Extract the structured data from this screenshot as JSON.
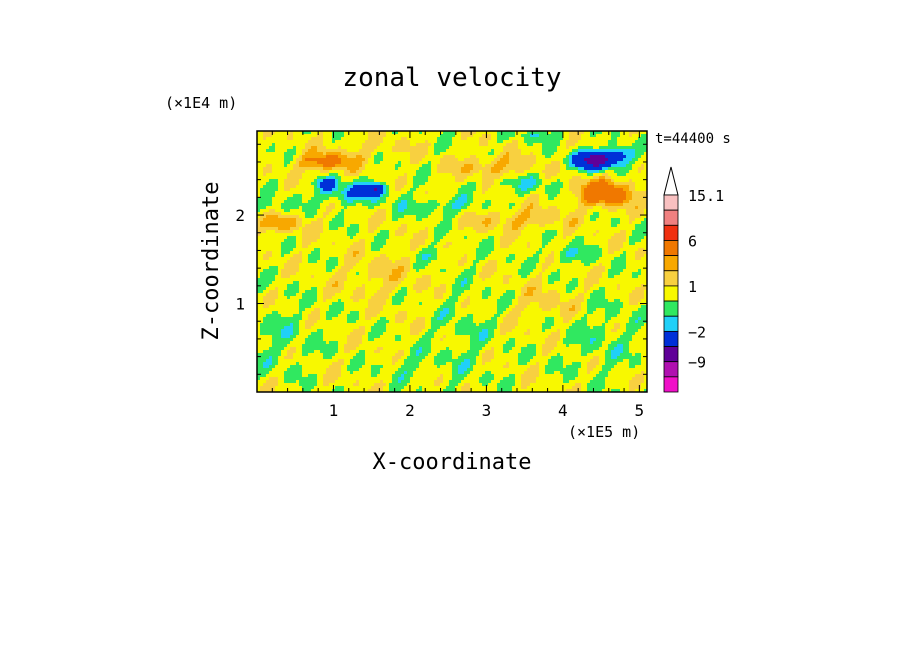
{
  "chart_data": {
    "type": "heatmap",
    "title": "zonal velocity",
    "xlabel": "X-coordinate",
    "ylabel": "Z-coordinate",
    "x_scale_label": "(×1E5 m)",
    "y_scale_label": "(×1E4 m)",
    "time_label": "t=44400 s",
    "xlim": [
      0,
      5.1
    ],
    "ylim": [
      0,
      2.95
    ],
    "x_ticks": [
      1,
      2,
      3,
      4,
      5
    ],
    "y_ticks": [
      1,
      2
    ],
    "colorbar": {
      "labels": [
        {
          "value": 15.1,
          "text": "15.1"
        },
        {
          "value": 6,
          "text": "6"
        },
        {
          "value": 1,
          "text": "1"
        },
        {
          "value": -2,
          "text": "−2"
        },
        {
          "value": -9,
          "text": "−9"
        }
      ],
      "levels": [
        {
          "upper": 16,
          "color": "#f8c0c0"
        },
        {
          "upper": 12,
          "color": "#f08080"
        },
        {
          "upper": 9,
          "color": "#f03010"
        },
        {
          "upper": 6,
          "color": "#f07800"
        },
        {
          "upper": 3,
          "color": "#f8a800"
        },
        {
          "upper": 2,
          "color": "#f8d040"
        },
        {
          "upper": 1,
          "color": "#f8f800"
        },
        {
          "upper": 0,
          "color": "#30e860"
        },
        {
          "upper": -1,
          "color": "#20d0f8"
        },
        {
          "upper": -2,
          "color": "#0030d8"
        },
        {
          "upper": -5,
          "color": "#600098"
        },
        {
          "upper": -9,
          "color": "#b010b0"
        },
        {
          "upper": -12,
          "color": "#f010c8"
        }
      ]
    },
    "field": {
      "background": 0.5,
      "features": [
        {
          "x": 0.9,
          "z": 2.6,
          "sx": 0.35,
          "sz": 0.1,
          "v": 3.5
        },
        {
          "x": 1.25,
          "z": 2.25,
          "sx": 0.45,
          "sz": 0.12,
          "v": -2.5
        },
        {
          "x": 0.9,
          "z": 2.35,
          "sx": 0.12,
          "sz": 0.06,
          "v": -4
        },
        {
          "x": 1.55,
          "z": 2.3,
          "sx": 0.1,
          "sz": 0.06,
          "v": -4
        },
        {
          "x": 2.4,
          "z": 2.1,
          "sx": 0.5,
          "sz": 0.1,
          "v": -1.5
        },
        {
          "x": 4.45,
          "z": 2.62,
          "sx": 0.3,
          "sz": 0.1,
          "v": -7
        },
        {
          "x": 4.55,
          "z": 2.25,
          "sx": 0.35,
          "sz": 0.15,
          "v": 4.5
        },
        {
          "x": 4.75,
          "z": 2.7,
          "sx": 0.15,
          "sz": 0.08,
          "v": -2.5
        },
        {
          "x": 3.5,
          "z": 2.35,
          "sx": 0.5,
          "sz": 0.1,
          "v": -1.2
        },
        {
          "x": 3.1,
          "z": 2.55,
          "sx": 0.5,
          "sz": 0.12,
          "v": 1.8
        },
        {
          "x": 0.3,
          "z": 1.9,
          "sx": 0.3,
          "sz": 0.1,
          "v": 2.2
        },
        {
          "x": 0.2,
          "z": 2.1,
          "sx": 0.25,
          "sz": 0.08,
          "v": -1.2
        },
        {
          "x": 3.4,
          "z": 1.95,
          "sx": 0.6,
          "sz": 0.12,
          "v": 1.6
        },
        {
          "x": 4.1,
          "z": 1.55,
          "sx": 0.35,
          "sz": 0.1,
          "v": -1.2
        },
        {
          "x": 2.4,
          "z": 1.55,
          "sx": 0.25,
          "sz": 0.08,
          "v": -1.1
        },
        {
          "x": 0.3,
          "z": 0.6,
          "sx": 0.5,
          "sz": 0.4,
          "v": -0.8
        },
        {
          "x": 4.5,
          "z": 0.6,
          "sx": 0.5,
          "sz": 0.4,
          "v": -0.8
        },
        {
          "x": 2.7,
          "z": 0.6,
          "sx": 0.4,
          "sz": 0.6,
          "v": -0.7
        },
        {
          "x": 1.6,
          "z": 1.3,
          "sx": 0.5,
          "sz": 0.25,
          "v": 0.9
        },
        {
          "x": 3.8,
          "z": 1.0,
          "sx": 0.4,
          "sz": 0.2,
          "v": 0.9
        },
        {
          "x": 2.0,
          "z": 0.3,
          "sx": 0.3,
          "sz": 0.15,
          "v": -0.9
        },
        {
          "x": 1.5,
          "z": 2.75,
          "sx": 0.5,
          "sz": 0.12,
          "v": 0.7
        },
        {
          "x": 3.7,
          "z": 2.9,
          "sx": 0.4,
          "sz": 0.06,
          "v": -1.1
        }
      ]
    }
  }
}
